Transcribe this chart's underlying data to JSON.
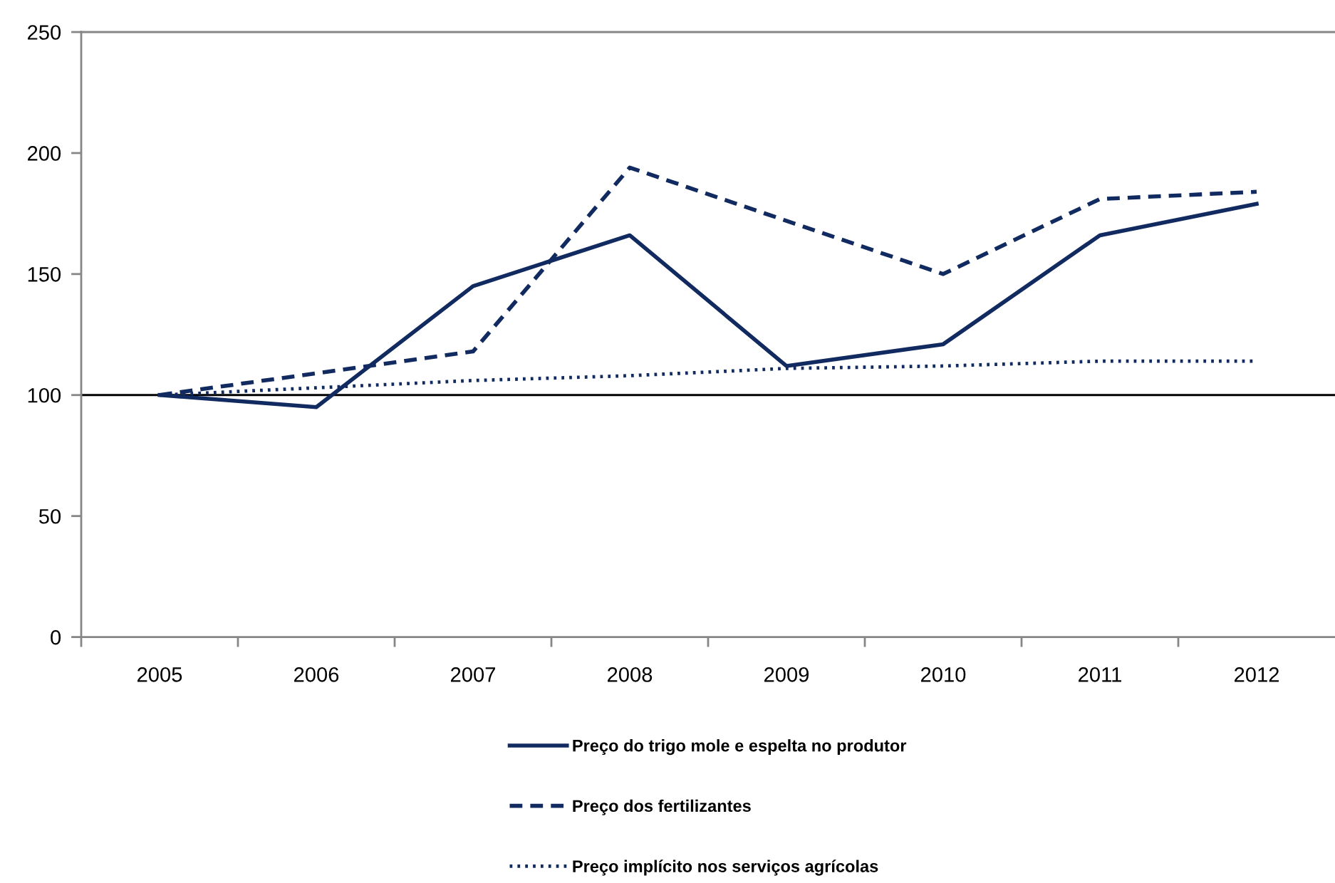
{
  "chart_data": {
    "type": "line",
    "categories": [
      "2005",
      "2006",
      "2007",
      "2008",
      "2009",
      "2010",
      "2011",
      "2012"
    ],
    "series": [
      {
        "name": "Preço do trigo mole e espelta no produtor",
        "color": "#112a60",
        "line_style": "solid",
        "values": [
          100,
          95,
          145,
          166,
          112,
          121,
          166,
          179
        ]
      },
      {
        "name": "Preço dos fertilizantes",
        "color": "#112a60",
        "line_style": "dashed",
        "values": [
          100,
          109,
          118,
          194,
          172,
          150,
          181,
          184
        ]
      },
      {
        "name": "Preço implícito nos serviços agrícolas",
        "color": "#112a60",
        "line_style": "dotted",
        "values": [
          100,
          103,
          106,
          108,
          111,
          112,
          114,
          114
        ]
      }
    ],
    "ylim": [
      0,
      250
    ],
    "yticks": [
      0,
      50,
      100,
      150,
      200,
      250
    ],
    "ref_lines": [
      {
        "axis": "y",
        "value": 100,
        "color": "#000000"
      }
    ],
    "legend": "bottom",
    "grid": false
  }
}
